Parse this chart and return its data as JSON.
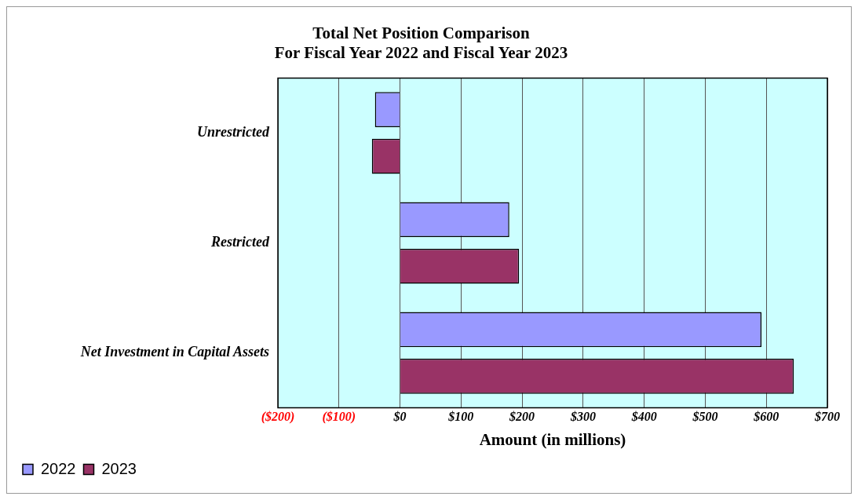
{
  "chart_data": {
    "type": "bar",
    "orientation": "horizontal",
    "title": "Total Net Position Comparison\nFor Fiscal Year 2022 and Fiscal Year 2023",
    "xlabel": "Amount (in millions)",
    "categories": [
      "Unrestricted",
      "Restricted",
      "Net Investment in Capital Assets"
    ],
    "series": [
      {
        "name": "2022",
        "color": "#9999ff",
        "values": [
          -41,
          179,
          592
        ]
      },
      {
        "name": "2023",
        "color": "#993366",
        "values": [
          -46,
          195,
          645
        ]
      }
    ],
    "xlim": [
      -200,
      700
    ],
    "xticks": [
      {
        "value": -200,
        "label": "($200)"
      },
      {
        "value": -100,
        "label": "($100)"
      },
      {
        "value": 0,
        "label": "$0"
      },
      {
        "value": 100,
        "label": "$100"
      },
      {
        "value": 200,
        "label": "$200"
      },
      {
        "value": 300,
        "label": "$300"
      },
      {
        "value": 400,
        "label": "$400"
      },
      {
        "value": 500,
        "label": "$500"
      },
      {
        "value": 600,
        "label": "$600"
      },
      {
        "value": 700,
        "label": "$700"
      }
    ],
    "grid": "x",
    "legend": "bottom left"
  }
}
